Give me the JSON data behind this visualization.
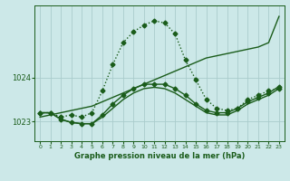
{
  "title": "Graphe pression niveau de la mer (hPa)",
  "bg_color": "#cce8e8",
  "grid_color": "#aacccc",
  "line_color": "#1a5c1a",
  "xlim": [
    -0.5,
    23.5
  ],
  "ylim": [
    1022.55,
    1025.65
  ],
  "yticks": [
    1023,
    1024
  ],
  "xticks": [
    0,
    1,
    2,
    3,
    4,
    5,
    6,
    7,
    8,
    9,
    10,
    11,
    12,
    13,
    14,
    15,
    16,
    17,
    18,
    19,
    20,
    21,
    22,
    23
  ],
  "series": [
    {
      "x": [
        0,
        1,
        2,
        3,
        4,
        5,
        6,
        7,
        8,
        9,
        10,
        11,
        12,
        13,
        14,
        15,
        16,
        17,
        18,
        19,
        20,
        21,
        22,
        23
      ],
      "y": [
        1023.2,
        1023.2,
        1023.1,
        1023.15,
        1023.1,
        1023.2,
        1023.7,
        1024.3,
        1024.8,
        1025.05,
        1025.2,
        1025.3,
        1025.25,
        1025.0,
        1024.4,
        1023.95,
        1023.5,
        1023.3,
        1023.25,
        1023.3,
        1023.5,
        1023.6,
        1023.7,
        1023.75
      ],
      "ls": ":",
      "marker": "D",
      "ms": 2.5,
      "lw": 1.0
    },
    {
      "x": [
        0,
        1,
        2,
        3,
        4,
        5,
        6,
        7,
        8,
        9,
        10,
        11,
        12,
        13,
        14,
        15,
        16,
        17,
        18,
        19,
        20,
        21,
        22,
        23
      ],
      "y": [
        1023.1,
        1023.15,
        1023.2,
        1023.25,
        1023.3,
        1023.35,
        1023.45,
        1023.55,
        1023.65,
        1023.75,
        1023.85,
        1023.95,
        1024.05,
        1024.15,
        1024.25,
        1024.35,
        1024.45,
        1024.5,
        1024.55,
        1024.6,
        1024.65,
        1024.7,
        1024.8,
        1025.4
      ],
      "ls": "-",
      "marker": null,
      "ms": 0,
      "lw": 1.0
    },
    {
      "x": [
        0,
        1,
        2,
        3,
        4,
        5,
        6,
        7,
        8,
        9,
        10,
        11,
        12,
        13,
        14,
        15,
        16,
        17,
        18,
        19,
        20,
        21,
        22,
        23
      ],
      "y": [
        1023.2,
        1023.2,
        1023.05,
        1022.98,
        1022.95,
        1022.95,
        1023.15,
        1023.4,
        1023.6,
        1023.75,
        1023.85,
        1023.85,
        1023.85,
        1023.75,
        1023.6,
        1023.4,
        1023.25,
        1023.2,
        1023.2,
        1023.3,
        1023.45,
        1023.55,
        1023.65,
        1023.8
      ],
      "ls": "-",
      "marker": "D",
      "ms": 2.5,
      "lw": 1.0
    },
    {
      "x": [
        0,
        1,
        2,
        3,
        4,
        5,
        6,
        7,
        8,
        9,
        10,
        11,
        12,
        13,
        14,
        15,
        16,
        17,
        18,
        19,
        20,
        21,
        22,
        23
      ],
      "y": [
        1023.2,
        1023.2,
        1023.05,
        1022.98,
        1022.95,
        1022.95,
        1023.1,
        1023.3,
        1023.5,
        1023.65,
        1023.75,
        1023.78,
        1023.75,
        1023.65,
        1023.5,
        1023.35,
        1023.2,
        1023.15,
        1023.15,
        1023.25,
        1023.4,
        1023.5,
        1023.6,
        1023.75
      ],
      "ls": "-",
      "marker": null,
      "ms": 0,
      "lw": 1.0
    }
  ]
}
